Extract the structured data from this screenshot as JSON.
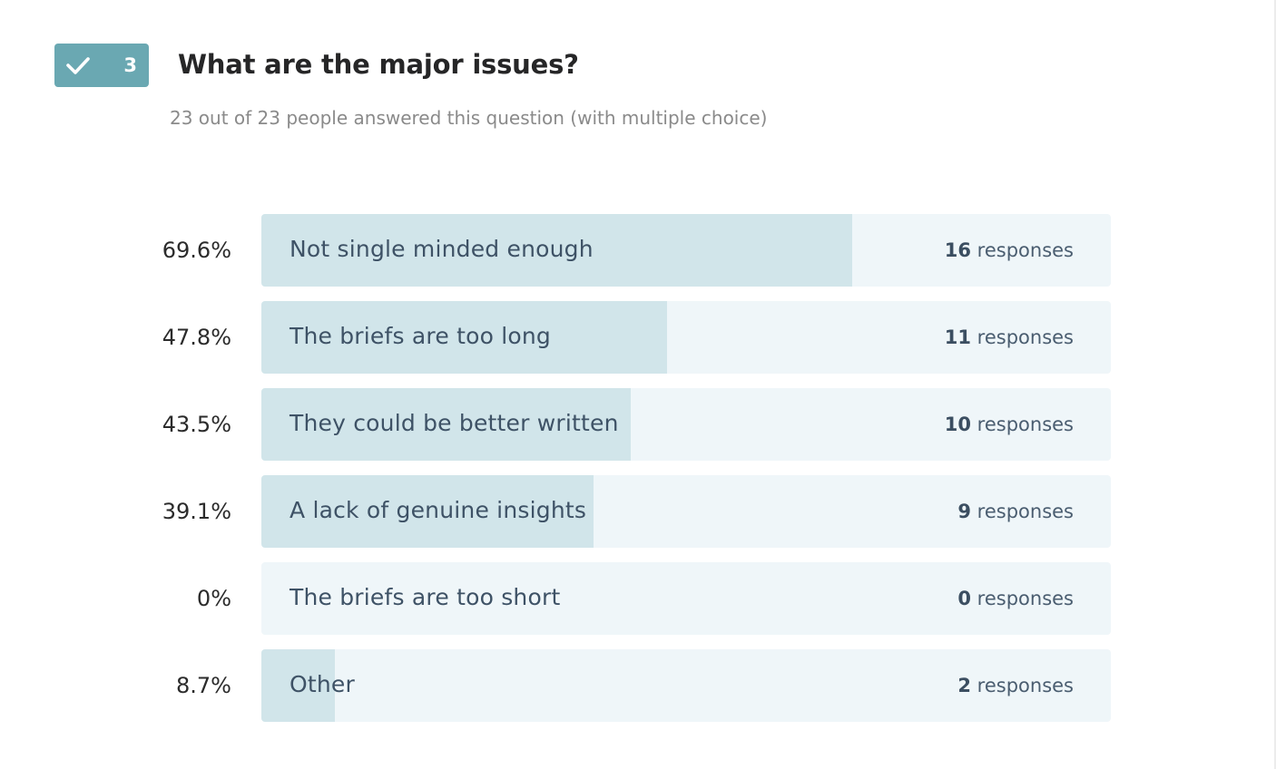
{
  "question": {
    "number": "3",
    "title": "What are the major issues?",
    "subtitle": "23 out of 23 people answered this question (with multiple choice)",
    "accent_color": "#6aa8b2",
    "badge_icon": "check-icon"
  },
  "chart_data": {
    "type": "bar",
    "orientation": "horizontal",
    "title": "What are the major issues?",
    "categories": [
      "Not single minded enough",
      "The briefs are too long",
      "They could be better written",
      "A lack of genuine insights",
      "The briefs are too short",
      "Other"
    ],
    "values": [
      69.6,
      47.8,
      43.5,
      39.1,
      0,
      8.7
    ],
    "percent_labels": [
      "69.6%",
      "47.8%",
      "43.5%",
      "39.1%",
      "0%",
      "8.7%"
    ],
    "responses": [
      16,
      11,
      10,
      9,
      0,
      2
    ],
    "responses_unit": "responses",
    "xlim": [
      0,
      100
    ],
    "bar_color": "#d1e5ea",
    "track_color": "#eff6f9"
  }
}
